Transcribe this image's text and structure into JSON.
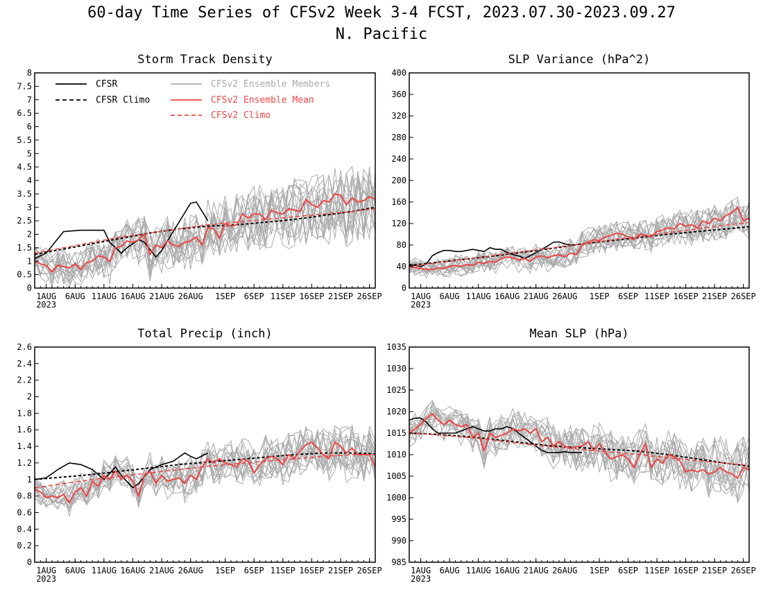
{
  "figure": {
    "title_line1": "60-day Time Series of CFSv2 Week 3-4 FCST, 2023.07.30-2023.09.27",
    "title_line2": "N. Pacific"
  },
  "colors": {
    "cfsr": "#000000",
    "members": "#aaaaaa",
    "mean": "#ee4444"
  },
  "x_axis": {
    "tick_labels": [
      "1AUG",
      "6AUG",
      "11AUG",
      "16AUG",
      "21AUG",
      "26AUG",
      "1SEP",
      "6SEP",
      "11SEP",
      "16SEP",
      "21SEP",
      "26SEP"
    ],
    "tick_days": [
      2,
      7,
      12,
      17,
      22,
      27,
      33,
      38,
      43,
      48,
      53,
      58
    ],
    "year_label": "2023",
    "range_days": [
      0,
      59
    ]
  },
  "legend": {
    "cfsr": "CFSR",
    "cfsr_climo": "CFSR Climo",
    "members": "CFSv2 Ensemble Members",
    "mean": "CFSv2 Ensemble Mean",
    "climo": "CFSv2 Climo"
  },
  "chart_data": [
    {
      "type": "line",
      "title": "Storm Track Density",
      "ylim": [
        0,
        8
      ],
      "yticks": [
        "0",
        "0.5",
        "1",
        "1.5",
        "2",
        "2.5",
        "3",
        "3.5",
        "4",
        "4.5",
        "5",
        "5.5",
        "6",
        "6.5",
        "7",
        "7.5",
        "8"
      ],
      "member_spread": 0.55,
      "series": [
        {
          "name": "CFSR",
          "x": [
            0,
            2,
            5,
            8,
            10,
            12,
            13,
            15,
            16,
            18,
            19,
            21,
            22,
            24,
            26,
            27,
            28,
            30
          ],
          "y": [
            1.1,
            1.3,
            2.1,
            2.15,
            2.15,
            2.15,
            1.7,
            1.3,
            1.5,
            1.8,
            1.7,
            1.15,
            1.4,
            2.1,
            2.8,
            3.15,
            3.2,
            2.5
          ]
        },
        {
          "name": "CFSR Climo",
          "x": [
            0,
            5,
            10,
            15,
            20,
            25,
            30,
            35,
            40,
            45,
            50,
            55,
            59
          ],
          "y": [
            1.25,
            1.45,
            1.65,
            1.85,
            2.05,
            2.2,
            2.3,
            2.35,
            2.45,
            2.55,
            2.7,
            2.85,
            3.0
          ]
        },
        {
          "name": "CFSv2 Ensemble Mean",
          "x": [
            0,
            1,
            2,
            3,
            4,
            5,
            6,
            7,
            8,
            9,
            10,
            11,
            12,
            13,
            14,
            15,
            16,
            17,
            18,
            19,
            20,
            21,
            22,
            23,
            24,
            25,
            26,
            27,
            28,
            29,
            30,
            31,
            32,
            33,
            34,
            35,
            36,
            37,
            38,
            39,
            40,
            41,
            42,
            43,
            44,
            45,
            46,
            47,
            48,
            49,
            50,
            51,
            52,
            53,
            54,
            55,
            56,
            57,
            58,
            59
          ],
          "y": [
            1.0,
            0.9,
            0.85,
            0.6,
            0.85,
            0.8,
            0.75,
            0.9,
            0.7,
            0.95,
            1.0,
            1.2,
            1.15,
            1.0,
            1.5,
            1.55,
            1.75,
            1.7,
            1.8,
            2.0,
            1.25,
            1.6,
            1.5,
            1.75,
            1.6,
            1.55,
            1.7,
            1.75,
            1.9,
            1.6,
            2.25,
            2.2,
            1.85,
            2.4,
            2.3,
            2.35,
            2.75,
            2.6,
            2.75,
            2.75,
            2.55,
            2.9,
            2.8,
            2.75,
            2.95,
            2.9,
            2.85,
            3.3,
            3.1,
            3.0,
            3.25,
            3.2,
            3.5,
            3.45,
            3.1,
            3.35,
            3.2,
            3.25,
            3.4,
            3.3
          ]
        },
        {
          "name": "CFSv2 Climo",
          "x": [
            0,
            5,
            10,
            15,
            20,
            25,
            30,
            35,
            40,
            45,
            50,
            55,
            59
          ],
          "y": [
            1.3,
            1.5,
            1.7,
            1.9,
            2.05,
            2.2,
            2.35,
            2.45,
            2.55,
            2.65,
            2.75,
            2.85,
            2.95
          ]
        }
      ]
    },
    {
      "type": "line",
      "title": "SLP Variance (hPa^2)",
      "ylim": [
        0,
        400
      ],
      "yticks": [
        "0",
        "40",
        "80",
        "120",
        "160",
        "200",
        "240",
        "280",
        "320",
        "360",
        "400"
      ],
      "member_spread": 14,
      "series": [
        {
          "name": "CFSR",
          "x": [
            0,
            1,
            2,
            3,
            4,
            5,
            6,
            7,
            8,
            9,
            10,
            11,
            12,
            13,
            14,
            15,
            16,
            17,
            18,
            19,
            20,
            21,
            22,
            23,
            24,
            25,
            26,
            27,
            28,
            29
          ],
          "y": [
            44,
            42,
            40,
            45,
            60,
            66,
            70,
            70,
            68,
            68,
            70,
            72,
            70,
            68,
            75,
            72,
            72,
            66,
            62,
            60,
            55,
            60,
            66,
            72,
            78,
            85,
            86,
            82,
            80,
            80
          ]
        },
        {
          "name": "CFSR Climo",
          "x": [
            0,
            5,
            10,
            15,
            20,
            25,
            30,
            35,
            40,
            45,
            50,
            55,
            59
          ],
          "y": [
            42,
            48,
            54,
            60,
            67,
            74,
            82,
            88,
            94,
            100,
            105,
            110,
            114
          ]
        },
        {
          "name": "CFSv2 Ensemble Mean",
          "x": [
            0,
            1,
            2,
            3,
            4,
            5,
            6,
            7,
            8,
            9,
            10,
            11,
            12,
            13,
            14,
            15,
            16,
            17,
            18,
            19,
            20,
            21,
            22,
            23,
            24,
            25,
            26,
            27,
            28,
            29,
            30,
            31,
            32,
            33,
            34,
            35,
            36,
            37,
            38,
            39,
            40,
            41,
            42,
            43,
            44,
            45,
            46,
            47,
            48,
            49,
            50,
            51,
            52,
            53,
            54,
            55,
            56,
            57,
            58,
            59
          ],
          "y": [
            40,
            38,
            36,
            35,
            34,
            38,
            36,
            40,
            42,
            40,
            44,
            42,
            48,
            46,
            50,
            48,
            55,
            58,
            56,
            52,
            55,
            50,
            58,
            60,
            56,
            60,
            62,
            58,
            65,
            62,
            80,
            85,
            90,
            88,
            95,
            98,
            102,
            100,
            95,
            90,
            100,
            98,
            95,
            105,
            108,
            112,
            110,
            120,
            115,
            118,
            112,
            125,
            120,
            130,
            125,
            135,
            140,
            150,
            125,
            130
          ]
        },
        {
          "name": "CFSv2 Climo",
          "x": [
            0,
            5,
            10,
            15,
            20,
            25,
            30,
            35,
            40,
            45,
            50,
            55,
            59
          ],
          "y": [
            40,
            47,
            54,
            61,
            68,
            75,
            82,
            89,
            96,
            103,
            110,
            117,
            122
          ]
        }
      ]
    },
    {
      "type": "line",
      "title": "Total Precip (inch)",
      "ylim": [
        0,
        2.6
      ],
      "yticks": [
        "0",
        "0.2",
        "0.4",
        "0.6",
        "0.8",
        "1",
        "1.2",
        "1.4",
        "1.6",
        "1.8",
        "2",
        "2.2",
        "2.4",
        "2.6"
      ],
      "member_spread": 0.13,
      "series": [
        {
          "name": "CFSR",
          "x": [
            0,
            2,
            4,
            6,
            8,
            10,
            12,
            14,
            15,
            17,
            18,
            20,
            22,
            24,
            26,
            27,
            28,
            30
          ],
          "y": [
            1.0,
            1.02,
            1.12,
            1.2,
            1.18,
            1.12,
            1.0,
            1.15,
            1.05,
            0.9,
            0.95,
            1.12,
            1.18,
            1.22,
            1.32,
            1.28,
            1.25,
            1.32
          ]
        },
        {
          "name": "CFSR Climo",
          "x": [
            0,
            5,
            10,
            15,
            20,
            25,
            30,
            35,
            40,
            45,
            50,
            55,
            59
          ],
          "y": [
            1.0,
            1.03,
            1.06,
            1.1,
            1.14,
            1.18,
            1.21,
            1.24,
            1.27,
            1.3,
            1.32,
            1.32,
            1.31
          ]
        },
        {
          "name": "CFSv2 Ensemble Mean",
          "x": [
            0,
            1,
            2,
            3,
            4,
            5,
            6,
            7,
            8,
            9,
            10,
            11,
            12,
            13,
            14,
            15,
            16,
            17,
            18,
            19,
            20,
            21,
            22,
            23,
            24,
            25,
            26,
            27,
            28,
            29,
            30,
            31,
            32,
            33,
            34,
            35,
            36,
            37,
            38,
            39,
            40,
            41,
            42,
            43,
            44,
            45,
            46,
            47,
            48,
            49,
            50,
            51,
            52,
            53,
            54,
            55,
            56,
            57,
            58,
            59
          ],
          "y": [
            0.88,
            0.85,
            0.78,
            0.8,
            0.78,
            0.82,
            0.72,
            0.85,
            0.9,
            0.8,
            0.98,
            0.92,
            1.05,
            1.0,
            1.1,
            1.0,
            1.05,
            0.98,
            0.8,
            1.05,
            1.1,
            0.95,
            1.05,
            0.98,
            1.0,
            1.02,
            0.95,
            1.05,
            1.0,
            1.15,
            1.25,
            1.2,
            1.25,
            1.2,
            1.18,
            1.15,
            1.25,
            1.22,
            1.08,
            1.18,
            1.25,
            1.28,
            1.25,
            1.18,
            1.3,
            1.25,
            1.35,
            1.42,
            1.45,
            1.38,
            1.3,
            1.25,
            1.45,
            1.4,
            1.32,
            1.38,
            1.3,
            1.3,
            1.3,
            1.15
          ]
        },
        {
          "name": "CFSv2 Climo",
          "x": [
            0,
            5,
            10,
            15,
            20,
            25,
            30,
            35,
            40,
            45,
            50,
            55,
            59
          ],
          "y": [
            0.9,
            0.95,
            1.0,
            1.04,
            1.08,
            1.12,
            1.16,
            1.19,
            1.22,
            1.25,
            1.28,
            1.3,
            1.3
          ]
        }
      ]
    },
    {
      "type": "line",
      "title": "Mean SLP (hPa)",
      "ylim": [
        985,
        1035
      ],
      "yticks": [
        "985",
        "990",
        "995",
        "1000",
        "1005",
        "1010",
        "1015",
        "1020",
        "1025",
        "1030",
        "1035"
      ],
      "member_spread": 2.8,
      "series": [
        {
          "name": "CFSR",
          "x": [
            0,
            1,
            2,
            3,
            4,
            5,
            6,
            7,
            8,
            9,
            10,
            11,
            12,
            13,
            14,
            15,
            16,
            17,
            18,
            19,
            20,
            21,
            22,
            23,
            24,
            25,
            26,
            27,
            28,
            29,
            30
          ],
          "y": [
            1018,
            1018.5,
            1018.5,
            1017.5,
            1016,
            1015,
            1015,
            1015,
            1015,
            1015.5,
            1016,
            1016.5,
            1016,
            1015.5,
            1015.5,
            1016,
            1016,
            1016.5,
            1016,
            1015,
            1014,
            1013,
            1012,
            1011,
            1010.5,
            1010.5,
            1010.5,
            1010.7,
            1010.5,
            1010.5,
            1010.5
          ]
        },
        {
          "name": "CFSR Climo",
          "x": [
            0,
            5,
            10,
            15,
            20,
            25,
            30,
            35,
            40,
            45,
            50,
            55,
            59
          ],
          "y": [
            1015,
            1014.7,
            1014.2,
            1013.5,
            1012.7,
            1012,
            1011.6,
            1011.2,
            1010.8,
            1010,
            1009,
            1008,
            1007.3
          ]
        },
        {
          "name": "CFSv2 Ensemble Mean",
          "x": [
            0,
            1,
            2,
            3,
            4,
            5,
            6,
            7,
            8,
            9,
            10,
            11,
            12,
            13,
            14,
            15,
            16,
            17,
            18,
            19,
            20,
            21,
            22,
            23,
            24,
            25,
            26,
            27,
            28,
            29,
            30,
            31,
            32,
            33,
            34,
            35,
            36,
            37,
            38,
            39,
            40,
            41,
            42,
            43,
            44,
            45,
            46,
            47,
            48,
            49,
            50,
            51,
            52,
            53,
            54,
            55,
            56,
            57,
            58,
            59
          ],
          "y": [
            1015,
            1016,
            1017,
            1018.5,
            1019.5,
            1018,
            1017,
            1018,
            1017,
            1016.5,
            1017,
            1014,
            1015,
            1011,
            1015,
            1014,
            1014.5,
            1015,
            1016,
            1015.5,
            1016,
            1015,
            1016,
            1013,
            1014,
            1012,
            1013,
            1012,
            1011.5,
            1011.8,
            1012,
            1013,
            1011,
            1012.5,
            1010.5,
            1009,
            1009.5,
            1010,
            1009,
            1007,
            1010,
            1012.5,
            1007,
            1009,
            1008,
            1010,
            1009.5,
            1008.5,
            1006,
            1006.5,
            1006,
            1006.5,
            1005.5,
            1006,
            1007,
            1006,
            1005.5,
            1004.5,
            1007,
            1006.5
          ]
        },
        {
          "name": "CFSv2 Climo",
          "x": [
            0,
            5,
            10,
            15,
            20,
            25,
            30,
            35,
            40,
            45,
            50,
            55,
            59
          ],
          "y": [
            1015,
            1014.6,
            1014,
            1013.3,
            1012.5,
            1011.8,
            1011.2,
            1010.6,
            1010,
            1009.3,
            1008.6,
            1008,
            1007.5
          ]
        }
      ]
    }
  ]
}
